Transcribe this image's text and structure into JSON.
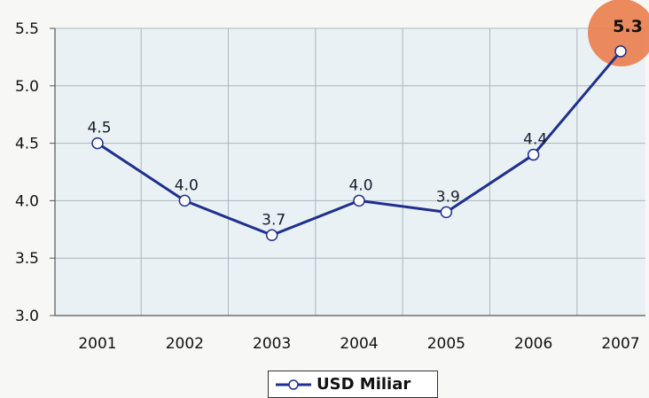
{
  "chart_data": {
    "type": "line",
    "categories": [
      "2001",
      "2002",
      "2003",
      "2004",
      "2005",
      "2006",
      "2007"
    ],
    "series": [
      {
        "name": "USD Miliar",
        "values": [
          4.5,
          4.0,
          3.7,
          4.0,
          3.9,
          4.4,
          5.3
        ],
        "labels": [
          "4.5",
          "4.0",
          "3.7",
          "4.0",
          "3.9",
          "4.4",
          "5.3"
        ]
      }
    ],
    "ylim": [
      3.0,
      5.5
    ],
    "yticks": [
      "3.0",
      "3.5",
      "4.0",
      "4.5",
      "5.0",
      "5.5"
    ],
    "grid": true,
    "legend": "bottom-center",
    "highlight_category": "2007",
    "colors": {
      "line": "#1f2f8f",
      "plot_bg": "#e9f1f4",
      "grid": "#a9b6bd",
      "highlight": "#e8804f",
      "marker_fill": "#ffffff"
    }
  }
}
